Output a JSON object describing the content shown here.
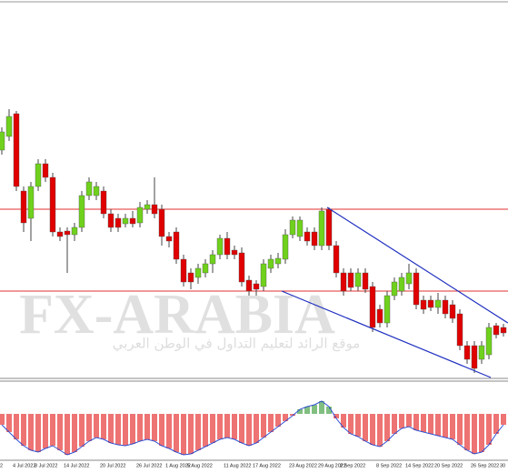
{
  "chart_data": [
    {
      "type": "candlestick",
      "watermark": "FX-ARABIA",
      "watermark_subtitle": "موقع الرائد لتعليم التداول في الوطن العربي",
      "categories": [
        "2",
        null,
        "4 Jul 2022",
        null,
        null,
        "8 Jul 2022",
        null,
        null,
        null,
        "14 Jul 2022",
        null,
        null,
        null,
        null,
        "20 Jul 2022",
        null,
        null,
        null,
        null,
        "26 Jul 2022",
        null,
        null,
        null,
        "1 Aug 2022",
        null,
        null,
        "5 Aug 2022",
        null,
        null,
        null,
        null,
        "11 Aug 2022",
        null,
        null,
        null,
        "17 Aug 2022",
        null,
        null,
        null,
        null,
        "23 Aug 2022",
        null,
        null,
        null,
        "29 Aug 2022",
        null,
        null,
        "2 Sep 2022",
        null,
        null,
        null,
        null,
        "8 Sep 2022",
        null,
        null,
        null,
        "14 Sep 2022",
        null,
        null,
        null,
        "20 Sep 2022",
        null,
        null,
        null,
        null,
        "26 Sep 2022",
        null,
        null,
        null,
        "30"
      ],
      "open": [
        250,
        265,
        290,
        205,
        175,
        210,
        235,
        220,
        160,
        161,
        157,
        165,
        200,
        200,
        205,
        180,
        175,
        169,
        175,
        170,
        185,
        190,
        185,
        155,
        160,
        130,
        115,
        110,
        115,
        125,
        135,
        153,
        140,
        137,
        107,
        103,
        100,
        120,
        125,
        130,
        157,
        155,
        160,
        160,
        145,
        185,
        145,
        115,
        115,
        100,
        115,
        100,
        75,
        60,
        90,
        95,
        103,
        115,
        85,
        85,
        77,
        85,
        80,
        70,
        35,
        35,
        20,
        25,
        57,
        55
      ],
      "high": [
        275,
        295,
        293,
        210,
        215,
        240,
        240,
        225,
        165,
        165,
        170,
        205,
        220,
        215,
        210,
        185,
        180,
        180,
        183,
        193,
        195,
        220,
        190,
        160,
        165,
        135,
        120,
        125,
        130,
        140,
        157,
        160,
        145,
        143,
        112,
        107,
        130,
        135,
        137,
        163,
        177,
        177,
        165,
        165,
        187,
        187,
        150,
        120,
        120,
        120,
        120,
        105,
        80,
        95,
        110,
        115,
        125,
        120,
        90,
        90,
        93,
        90,
        85,
        75,
        40,
        40,
        40,
        60,
        60,
        59
      ],
      "low": [
        245,
        260,
        205,
        160,
        150,
        205,
        215,
        155,
        150,
        115,
        150,
        160,
        195,
        195,
        175,
        160,
        160,
        165,
        165,
        165,
        180,
        175,
        145,
        143,
        125,
        100,
        97,
        103,
        110,
        115,
        130,
        130,
        130,
        100,
        90,
        90,
        95,
        115,
        120,
        125,
        153,
        150,
        145,
        140,
        140,
        140,
        110,
        90,
        95,
        95,
        93,
        50,
        55,
        55,
        85,
        90,
        97,
        75,
        70,
        73,
        70,
        65,
        60,
        30,
        15,
        5,
        15,
        20,
        43,
        45
      ],
      "close": [
        270,
        287,
        210,
        170,
        210,
        235,
        220,
        160,
        155,
        157,
        165,
        200,
        215,
        210,
        180,
        165,
        165,
        175,
        169,
        187,
        190,
        180,
        155,
        150,
        130,
        105,
        105,
        120,
        125,
        135,
        153,
        135,
        135,
        105,
        95,
        97,
        125,
        130,
        131,
        157,
        173,
        173,
        150,
        145,
        183,
        145,
        115,
        95,
        99,
        115,
        97,
        55,
        60,
        90,
        105,
        110,
        115,
        80,
        75,
        77,
        85,
        70,
        65,
        35,
        20,
        10,
        35,
        55,
        47,
        49
      ],
      "up_color": "#6fd11c",
      "down_color": "#e00000",
      "wick_color": "#444444",
      "ylim": [
        0,
        415
      ],
      "hlines": [
        185,
        95
      ],
      "hline_color": "#e03030",
      "trendlines": [
        {
          "x": [
            44.75,
            69.6
          ],
          "y": [
            187,
            60
          ]
        },
        {
          "x": [
            38.5,
            67.25
          ],
          "y": [
            95,
            0
          ]
        }
      ],
      "trendline_color": "#2030c0"
    },
    {
      "type": "bar",
      "values": [
        -12,
        -20,
        -28,
        -35,
        -40,
        -42,
        -38,
        -35,
        -40,
        -45,
        -42,
        -36,
        -30,
        -26,
        -28,
        -32,
        -34,
        -35,
        -33,
        -30,
        -28,
        -30,
        -35,
        -38,
        -42,
        -45,
        -44,
        -40,
        -36,
        -32,
        -28,
        -26,
        -28,
        -32,
        -35,
        -32,
        -26,
        -20,
        -14,
        -8,
        -2,
        5,
        8,
        10,
        14,
        8,
        -5,
        -15,
        -22,
        -25,
        -30,
        -34,
        -36,
        -30,
        -22,
        -16,
        -14,
        -18,
        -20,
        -22,
        -24,
        -26,
        -28,
        -34,
        -40,
        -44,
        -42,
        -34,
        -22,
        -12
      ],
      "up_color": "#1a8a1a",
      "down_color": "#e00000",
      "line_color": "#3050d0",
      "ylim": [
        -50,
        35
      ]
    }
  ]
}
